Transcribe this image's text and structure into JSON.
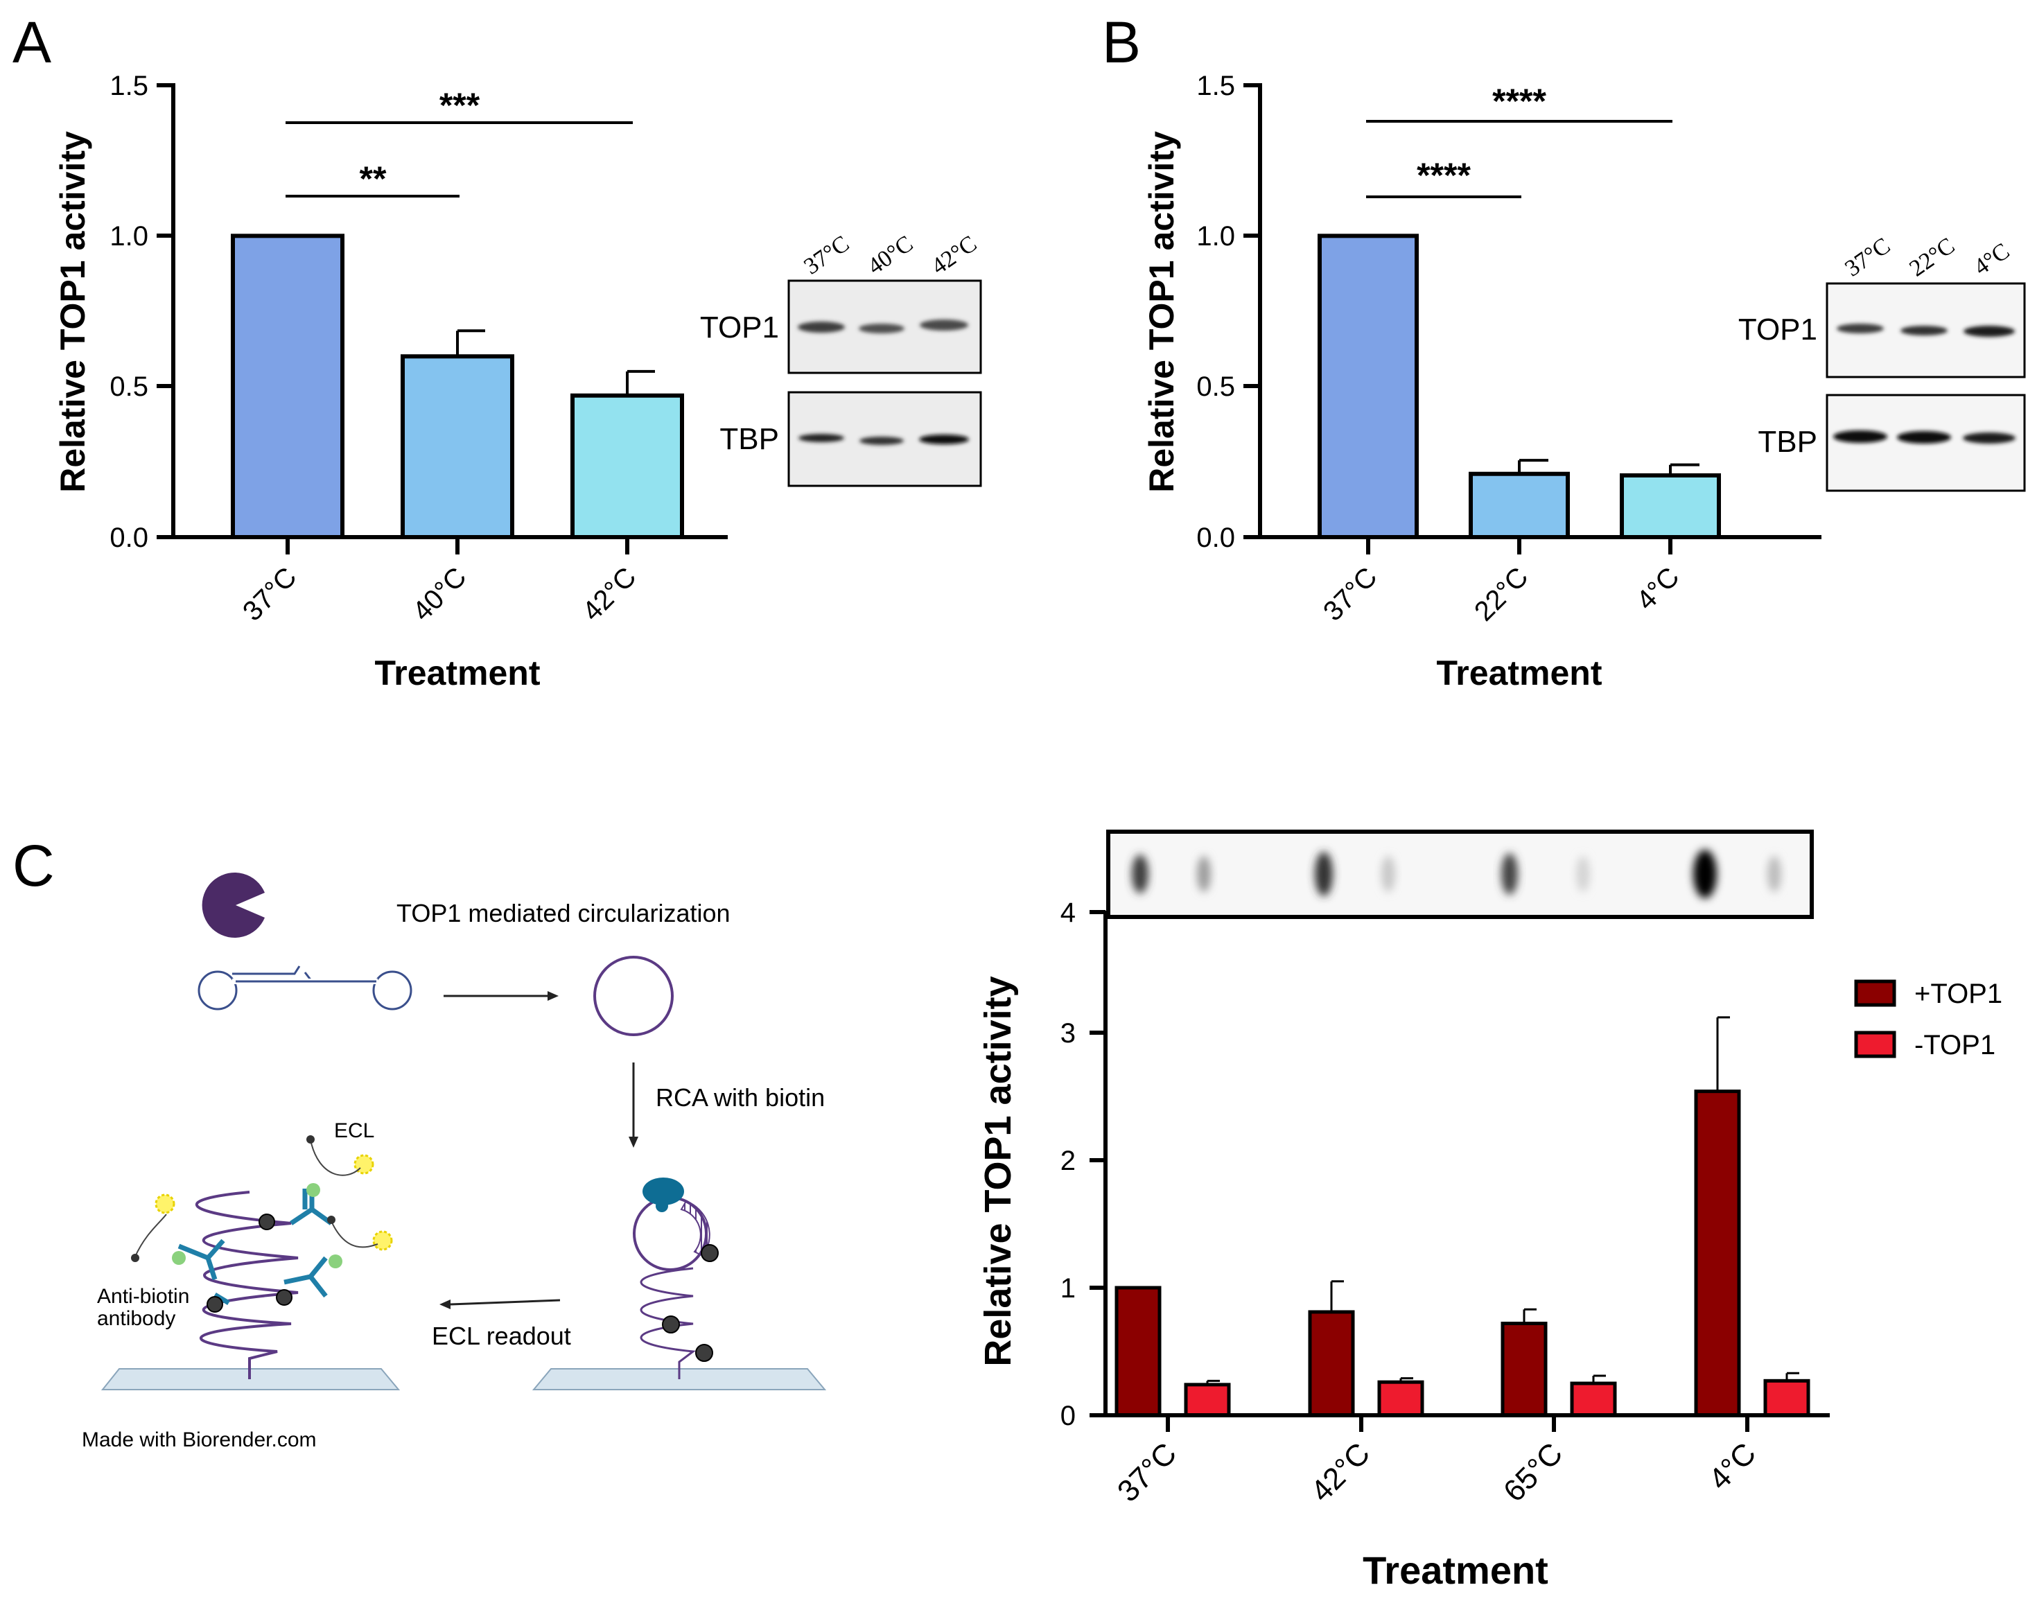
{
  "panels": {
    "a": "A",
    "b": "B",
    "c": "C"
  },
  "colors": {
    "bar_37": "#7ea2e6",
    "bar_mid": "#84c3ef",
    "bar_light": "#93e2ef",
    "plus_top1": "#8b0000",
    "minus_top1": "#ee1b2e"
  },
  "chart_data": [
    {
      "id": "A",
      "type": "bar",
      "title": "",
      "categories": [
        "37°C",
        "40°C",
        "42°C"
      ],
      "values": [
        1.0,
        0.6,
        0.47
      ],
      "errors": [
        0,
        0.085,
        0.08
      ],
      "xlabel": "Treatment",
      "ylabel": "Relative TOP1 activity",
      "ylim": [
        0,
        1.5
      ],
      "yticks": [
        "0.0",
        "0.5",
        "1.0",
        "1.5"
      ],
      "significance": [
        {
          "from": 0,
          "to": 1,
          "label": "**"
        },
        {
          "from": 0,
          "to": 2,
          "label": "***"
        }
      ],
      "blot": {
        "lanes": [
          "37°C",
          "40°C",
          "42°C"
        ],
        "rows": [
          "TOP1",
          "TBP"
        ]
      }
    },
    {
      "id": "B",
      "type": "bar",
      "title": "",
      "categories": [
        "37°C",
        "22°C",
        "4°C"
      ],
      "values": [
        1.0,
        0.21,
        0.205
      ],
      "errors": [
        0,
        0.045,
        0.035
      ],
      "xlabel": "Treatment",
      "ylabel": "Relative TOP1 activity",
      "ylim": [
        0,
        1.5
      ],
      "yticks": [
        "0.0",
        "0.5",
        "1.0",
        "1.5"
      ],
      "significance": [
        {
          "from": 0,
          "to": 1,
          "label": "****"
        },
        {
          "from": 0,
          "to": 2,
          "label": "****"
        }
      ],
      "blot": {
        "lanes": [
          "37°C",
          "22°C",
          "4°C"
        ],
        "rows": [
          "TOP1",
          "TBP"
        ]
      }
    },
    {
      "id": "C",
      "type": "bar",
      "title": "",
      "categories": [
        "37°C",
        "42°C",
        "65°C",
        "4°C"
      ],
      "series": [
        {
          "name": "+TOP1",
          "values": [
            1.0,
            0.81,
            0.72,
            2.54
          ],
          "errors": [
            0,
            0.24,
            0.11,
            0.58
          ]
        },
        {
          "name": "-TOP1",
          "values": [
            0.24,
            0.26,
            0.25,
            0.27
          ],
          "errors": [
            0.03,
            0.03,
            0.06,
            0.06
          ]
        }
      ],
      "xlabel": "Treatment",
      "ylabel": "Relative TOP1 activity",
      "ylim": [
        0,
        4
      ],
      "yticks": [
        "0",
        "1",
        "2",
        "3",
        "4"
      ],
      "legend": "right"
    }
  ],
  "diagram": {
    "step1": "TOP1 mediated circularization",
    "step2": "RCA with biotin",
    "step3": "ECL readout",
    "ecl": "ECL",
    "antibody_line1": "Anti-biotin",
    "antibody_line2": "antibody",
    "credit": "Made with Biorender.com"
  }
}
